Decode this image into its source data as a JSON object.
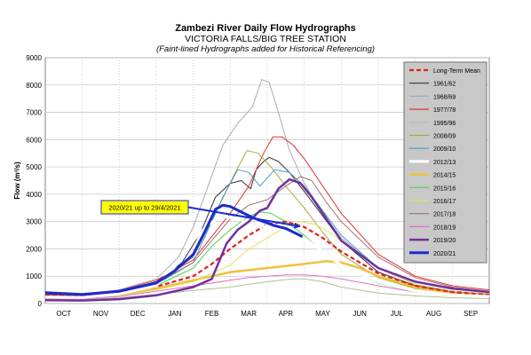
{
  "chart_data": {
    "type": "line",
    "title": "Zambezi River Daily Flow Hydrographs",
    "subtitle": "VICTORIA FALLS/BIG TREE STATION",
    "note": "(Faint-lined Hydrographs added for Historical Referencing)",
    "ylabel": "Flow (m³/s)",
    "xlabel": "",
    "ylim": [
      0,
      9000
    ],
    "xlim": [
      0,
      12
    ],
    "yticks": [
      "0",
      "1000",
      "2000",
      "3000",
      "4000",
      "5000",
      "6000",
      "7000",
      "8000",
      "9000"
    ],
    "categories": [
      "OCT",
      "NOV",
      "DEC",
      "JAN",
      "FEB",
      "MAR",
      "APR",
      "MAY",
      "JUN",
      "JUL",
      "AUG",
      "SEP"
    ],
    "grid": true,
    "legend_position": "right",
    "annotation": {
      "text": "2020/21 up to 29/4/2021",
      "x": 6.95,
      "y": 2780
    },
    "series": [
      {
        "name": "Long-Term Mean",
        "color": "#e02020",
        "width": 2.2,
        "dash": "5,3",
        "points": [
          [
            0,
            300
          ],
          [
            1,
            270
          ],
          [
            2,
            390
          ],
          [
            3,
            620
          ],
          [
            4,
            1000
          ],
          [
            4.5,
            1450
          ],
          [
            5,
            2000
          ],
          [
            5.5,
            2500
          ],
          [
            6,
            2900
          ],
          [
            6.5,
            3000
          ],
          [
            7,
            2800
          ],
          [
            7.5,
            2400
          ],
          [
            8,
            1900
          ],
          [
            9,
            1100
          ],
          [
            10,
            650
          ],
          [
            11,
            420
          ],
          [
            12,
            320
          ]
        ]
      },
      {
        "name": "1961/62",
        "color": "#333333",
        "width": 1,
        "points": [
          [
            0,
            350
          ],
          [
            1,
            300
          ],
          [
            2,
            450
          ],
          [
            3,
            800
          ],
          [
            3.7,
            1500
          ],
          [
            4.2,
            2600
          ],
          [
            4.6,
            3900
          ],
          [
            5,
            4400
          ],
          [
            5.3,
            4500
          ],
          [
            5.55,
            4200
          ],
          [
            5.7,
            4900
          ],
          [
            5.9,
            5200
          ],
          [
            6.05,
            5350
          ],
          [
            6.3,
            5200
          ],
          [
            6.6,
            4800
          ],
          [
            7,
            4100
          ],
          [
            7.5,
            3200
          ],
          [
            8,
            2300
          ],
          [
            9,
            1150
          ],
          [
            10,
            650
          ],
          [
            11,
            430
          ],
          [
            12,
            330
          ]
        ]
      },
      {
        "name": "1968/69",
        "color": "#a8a8b8",
        "width": 1,
        "points": [
          [
            0,
            320
          ],
          [
            1,
            280
          ],
          [
            2,
            500
          ],
          [
            3,
            900
          ],
          [
            3.6,
            1700
          ],
          [
            4,
            2800
          ],
          [
            4.4,
            4300
          ],
          [
            4.8,
            5800
          ],
          [
            5.2,
            6600
          ],
          [
            5.6,
            7200
          ],
          [
            5.85,
            8200
          ],
          [
            6.05,
            8100
          ],
          [
            6.3,
            7000
          ],
          [
            6.6,
            5600
          ],
          [
            7,
            4400
          ],
          [
            7.5,
            3300
          ],
          [
            8,
            2400
          ],
          [
            9,
            1300
          ],
          [
            10,
            700
          ],
          [
            11,
            450
          ],
          [
            12,
            350
          ]
        ]
      },
      {
        "name": "1977/78",
        "color": "#e03030",
        "width": 1,
        "points": [
          [
            0,
            380
          ],
          [
            1,
            330
          ],
          [
            2,
            480
          ],
          [
            3,
            850
          ],
          [
            4,
            1600
          ],
          [
            5,
            3300
          ],
          [
            5.5,
            4300
          ],
          [
            5.9,
            5500
          ],
          [
            6.15,
            6100
          ],
          [
            6.4,
            6100
          ],
          [
            6.7,
            5800
          ],
          [
            7,
            5300
          ],
          [
            7.5,
            4300
          ],
          [
            8,
            3300
          ],
          [
            9,
            1800
          ],
          [
            10,
            1000
          ],
          [
            11,
            650
          ],
          [
            12,
            500
          ]
        ]
      },
      {
        "name": "1995/96",
        "color": "#b0c090",
        "width": 1,
        "points": [
          [
            0,
            180
          ],
          [
            1,
            160
          ],
          [
            2,
            210
          ],
          [
            3,
            330
          ],
          [
            4,
            480
          ],
          [
            5,
            600
          ],
          [
            6,
            800
          ],
          [
            6.7,
            900
          ],
          [
            7,
            900
          ],
          [
            7.5,
            800
          ],
          [
            8,
            600
          ],
          [
            9,
            380
          ],
          [
            10,
            280
          ],
          [
            11,
            210
          ],
          [
            12,
            180
          ]
        ]
      },
      {
        "name": "2008/09",
        "color": "#a8a840",
        "width": 1,
        "points": [
          [
            0,
            280
          ],
          [
            1,
            260
          ],
          [
            2,
            400
          ],
          [
            3,
            750
          ],
          [
            4,
            1700
          ],
          [
            4.6,
            3300
          ],
          [
            5.1,
            4700
          ],
          [
            5.45,
            5600
          ],
          [
            5.75,
            5500
          ],
          [
            6.1,
            5000
          ],
          [
            6.5,
            4300
          ],
          [
            7,
            3500
          ],
          [
            7.5,
            2600
          ],
          [
            8,
            1800
          ],
          [
            9,
            950
          ],
          [
            10,
            550
          ],
          [
            11,
            380
          ],
          [
            12,
            300
          ]
        ]
      },
      {
        "name": "2009/10",
        "color": "#40a0c8",
        "width": 1,
        "points": [
          [
            0,
            260
          ],
          [
            1,
            240
          ],
          [
            2,
            380
          ],
          [
            3,
            700
          ],
          [
            4,
            1500
          ],
          [
            4.4,
            2700
          ],
          [
            4.8,
            3900
          ],
          [
            5.2,
            4900
          ],
          [
            5.5,
            4800
          ],
          [
            5.8,
            4300
          ],
          [
            6.2,
            4900
          ],
          [
            6.6,
            4800
          ],
          [
            7,
            4300
          ],
          [
            7.5,
            3400
          ],
          [
            8,
            2500
          ],
          [
            9,
            1300
          ],
          [
            10,
            700
          ],
          [
            11,
            450
          ],
          [
            12,
            350
          ]
        ]
      },
      {
        "name": "2012/13",
        "color": "#ffffff",
        "width": 3,
        "points": [
          [
            0,
            240
          ],
          [
            1,
            220
          ],
          [
            2,
            350
          ],
          [
            3,
            650
          ],
          [
            3.6,
            1500
          ],
          [
            4,
            2300
          ],
          [
            4.4,
            2900
          ],
          [
            4.8,
            3200
          ],
          [
            5.2,
            3100
          ],
          [
            5.6,
            2900
          ],
          [
            6,
            2800
          ],
          [
            6.5,
            2700
          ],
          [
            7,
            2400
          ],
          [
            7.5,
            1900
          ],
          [
            8,
            1400
          ],
          [
            9,
            800
          ],
          [
            10,
            450
          ],
          [
            11,
            320
          ],
          [
            12,
            260
          ]
        ]
      },
      {
        "name": "2014/15",
        "color": "#f0c040",
        "width": 2.5,
        "points": [
          [
            0,
            220
          ],
          [
            1,
            200
          ],
          [
            2,
            300
          ],
          [
            3,
            550
          ],
          [
            4,
            850
          ],
          [
            5,
            1150
          ],
          [
            6,
            1300
          ],
          [
            7,
            1450
          ],
          [
            7.6,
            1550
          ],
          [
            8,
            1500
          ],
          [
            8.5,
            1300
          ],
          [
            9,
            1000
          ],
          [
            10,
            600
          ],
          [
            11,
            380
          ],
          [
            12,
            280
          ]
        ]
      },
      {
        "name": "2015/16",
        "color": "#50d050",
        "width": 1,
        "points": [
          [
            0,
            250
          ],
          [
            1,
            230
          ],
          [
            2,
            360
          ],
          [
            3,
            650
          ],
          [
            4,
            1300
          ],
          [
            4.5,
            2100
          ],
          [
            5,
            2700
          ],
          [
            5.5,
            3200
          ],
          [
            5.8,
            3350
          ],
          [
            6.1,
            3300
          ],
          [
            6.5,
            3000
          ],
          [
            7,
            2500
          ],
          [
            7.5,
            1900
          ],
          [
            8,
            1400
          ],
          [
            9,
            750
          ],
          [
            10,
            420
          ],
          [
            11,
            300
          ],
          [
            12,
            240
          ]
        ]
      },
      {
        "name": "2016/17",
        "color": "#e0e060",
        "width": 1,
        "points": [
          [
            0,
            200
          ],
          [
            1,
            190
          ],
          [
            2,
            290
          ],
          [
            3,
            500
          ],
          [
            4,
            800
          ],
          [
            5,
            1400
          ],
          [
            5.5,
            2000
          ],
          [
            6,
            2400
          ],
          [
            6.5,
            2800
          ],
          [
            6.9,
            3000
          ],
          [
            7.3,
            2900
          ],
          [
            7.7,
            2600
          ],
          [
            8,
            2300
          ],
          [
            9,
            1300
          ],
          [
            10,
            700
          ],
          [
            11,
            450
          ],
          [
            12,
            350
          ]
        ]
      },
      {
        "name": "2017/18",
        "color": "#a07070",
        "width": 1,
        "points": [
          [
            0,
            300
          ],
          [
            1,
            270
          ],
          [
            2,
            400
          ],
          [
            3,
            750
          ],
          [
            4,
            1500
          ],
          [
            4.5,
            2300
          ],
          [
            5,
            3100
          ],
          [
            5.5,
            3600
          ],
          [
            6,
            3800
          ],
          [
            6.5,
            4300
          ],
          [
            6.9,
            4650
          ],
          [
            7.2,
            4500
          ],
          [
            7.6,
            3700
          ],
          [
            8,
            3000
          ],
          [
            9,
            1700
          ],
          [
            10,
            950
          ],
          [
            11,
            600
          ],
          [
            12,
            450
          ]
        ]
      },
      {
        "name": "2018/19",
        "color": "#e070c0",
        "width": 1,
        "points": [
          [
            0,
            200
          ],
          [
            1,
            180
          ],
          [
            2,
            260
          ],
          [
            3,
            450
          ],
          [
            4,
            650
          ],
          [
            5,
            850
          ],
          [
            5.5,
            950
          ],
          [
            6,
            1000
          ],
          [
            6.5,
            1050
          ],
          [
            7,
            1050
          ],
          [
            7.5,
            1000
          ],
          [
            8,
            900
          ],
          [
            9,
            650
          ],
          [
            10,
            420
          ],
          [
            11,
            300
          ],
          [
            12,
            240
          ]
        ]
      },
      {
        "name": "2019/20",
        "color": "#7030a0",
        "width": 2.5,
        "points": [
          [
            0,
            120
          ],
          [
            1,
            110
          ],
          [
            2,
            160
          ],
          [
            3,
            300
          ],
          [
            4,
            600
          ],
          [
            4.5,
            900
          ],
          [
            4.9,
            2200
          ],
          [
            5.2,
            2700
          ],
          [
            5.5,
            3000
          ],
          [
            5.8,
            3400
          ],
          [
            6,
            3500
          ],
          [
            6.3,
            4200
          ],
          [
            6.6,
            4550
          ],
          [
            6.9,
            4400
          ],
          [
            7.2,
            3900
          ],
          [
            7.6,
            3100
          ],
          [
            8,
            2300
          ],
          [
            9,
            1300
          ],
          [
            10,
            800
          ],
          [
            11,
            550
          ],
          [
            12,
            420
          ]
        ]
      },
      {
        "name": "2020/21",
        "color": "#1a2bd0",
        "width": 3,
        "points": [
          [
            0,
            400
          ],
          [
            1,
            330
          ],
          [
            2,
            450
          ],
          [
            3,
            750
          ],
          [
            3.5,
            1200
          ],
          [
            4,
            1800
          ],
          [
            4.3,
            2600
          ],
          [
            4.6,
            3450
          ],
          [
            4.8,
            3600
          ],
          [
            5,
            3550
          ],
          [
            5.3,
            3350
          ],
          [
            5.6,
            3150
          ],
          [
            5.9,
            3000
          ],
          [
            6.2,
            2850
          ],
          [
            6.5,
            2750
          ],
          [
            6.95,
            2450
          ]
        ]
      }
    ]
  }
}
